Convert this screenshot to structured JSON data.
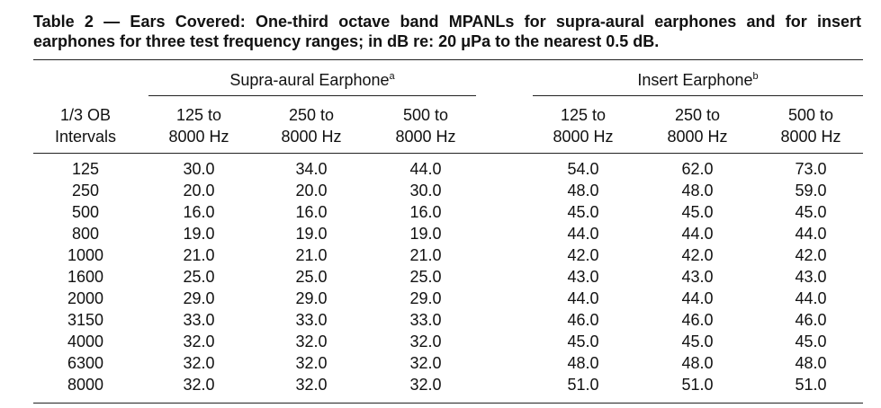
{
  "caption": "Table 2 — Ears Covered: One-third octave band MPANLs for supra-aural earphones and for insert earphones for three test frequency ranges; in dB re: 20 μPa to the nearest 0.5 dB.",
  "groups": {
    "supra": {
      "label": "Supra-aural Earphone",
      "note": "a"
    },
    "insert": {
      "label": "Insert Earphone",
      "note": "b"
    }
  },
  "columns": [
    {
      "line1": "1/3 OB",
      "line2": "Intervals"
    },
    {
      "line1": "125 to",
      "line2": "8000 Hz"
    },
    {
      "line1": "250 to",
      "line2": "8000 Hz"
    },
    {
      "line1": "500 to",
      "line2": "8000 Hz"
    },
    {
      "line1": "125 to",
      "line2": "8000 Hz"
    },
    {
      "line1": "250 to",
      "line2": "8000 Hz"
    },
    {
      "line1": "500 to",
      "line2": "8000 Hz"
    }
  ],
  "rows": [
    [
      "125",
      "30.0",
      "34.0",
      "44.0",
      "54.0",
      "62.0",
      "73.0"
    ],
    [
      "250",
      "20.0",
      "20.0",
      "30.0",
      "48.0",
      "48.0",
      "59.0"
    ],
    [
      "500",
      "16.0",
      "16.0",
      "16.0",
      "45.0",
      "45.0",
      "45.0"
    ],
    [
      "800",
      "19.0",
      "19.0",
      "19.0",
      "44.0",
      "44.0",
      "44.0"
    ],
    [
      "1000",
      "21.0",
      "21.0",
      "21.0",
      "42.0",
      "42.0",
      "42.0"
    ],
    [
      "1600",
      "25.0",
      "25.0",
      "25.0",
      "43.0",
      "43.0",
      "43.0"
    ],
    [
      "2000",
      "29.0",
      "29.0",
      "29.0",
      "44.0",
      "44.0",
      "44.0"
    ],
    [
      "3150",
      "33.0",
      "33.0",
      "33.0",
      "46.0",
      "46.0",
      "46.0"
    ],
    [
      "4000",
      "32.0",
      "32.0",
      "32.0",
      "45.0",
      "45.0",
      "45.0"
    ],
    [
      "6300",
      "32.0",
      "32.0",
      "32.0",
      "48.0",
      "48.0",
      "48.0"
    ],
    [
      "8000",
      "32.0",
      "32.0",
      "32.0",
      "51.0",
      "51.0",
      "51.0"
    ]
  ]
}
